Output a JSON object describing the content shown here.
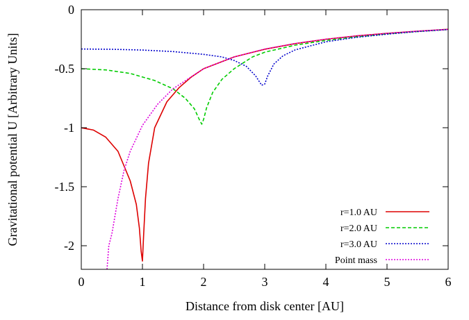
{
  "chart_data": {
    "type": "line",
    "xlabel": "Distance from disk center [AU]",
    "ylabel": "Gravitational potential U [Arbitrary Units]",
    "xlim": [
      0,
      6
    ],
    "ylim": [
      -2.2,
      0
    ],
    "x_ticks": [
      0,
      1,
      2,
      3,
      4,
      5,
      6
    ],
    "y_ticks": [
      0,
      -0.5,
      -1,
      -1.5,
      -2
    ],
    "x_tick_labels": [
      "0",
      "1",
      "2",
      "3",
      "4",
      "5",
      "6"
    ],
    "y_tick_labels": [
      "0",
      "-0.5",
      "-1",
      "-1.5",
      "-2"
    ],
    "grid": false,
    "legend_position": "bottom-right",
    "series": [
      {
        "name": "r=1.0 AU",
        "color": "#dd0000",
        "dash": "solid",
        "x": [
          0,
          0.2,
          0.4,
          0.6,
          0.8,
          0.9,
          0.95,
          0.98,
          1.0,
          1.02,
          1.05,
          1.1,
          1.2,
          1.4,
          1.6,
          1.8,
          2.0,
          2.5,
          3.0,
          3.5,
          4.0,
          4.5,
          5.0,
          5.5,
          6.0
        ],
        "y": [
          -1.0,
          -1.02,
          -1.08,
          -1.2,
          -1.45,
          -1.65,
          -1.85,
          -2.05,
          -2.13,
          -1.9,
          -1.6,
          -1.3,
          -1.0,
          -0.78,
          -0.66,
          -0.57,
          -0.5,
          -0.4,
          -0.335,
          -0.287,
          -0.25,
          -0.222,
          -0.2,
          -0.182,
          -0.166
        ]
      },
      {
        "name": "r=2.0 AU",
        "color": "#00cc00",
        "dash": "dashed",
        "x": [
          0,
          0.4,
          0.8,
          1.2,
          1.5,
          1.7,
          1.85,
          1.93,
          1.97,
          2.0,
          2.05,
          2.15,
          2.3,
          2.5,
          2.8,
          3.0,
          3.5,
          4.0,
          4.5,
          5.0,
          5.5,
          6.0
        ],
        "y": [
          -0.5,
          -0.51,
          -0.54,
          -0.6,
          -0.67,
          -0.75,
          -0.84,
          -0.93,
          -0.97,
          -0.93,
          -0.83,
          -0.7,
          -0.59,
          -0.5,
          -0.4,
          -0.36,
          -0.3,
          -0.26,
          -0.23,
          -0.205,
          -0.185,
          -0.168
        ]
      },
      {
        "name": "r=3.0 AU",
        "color": "#0000cc",
        "dash": "dotted",
        "x": [
          0,
          0.5,
          1.0,
          1.5,
          2.0,
          2.3,
          2.5,
          2.7,
          2.85,
          2.95,
          3.0,
          3.05,
          3.15,
          3.3,
          3.5,
          4.0,
          4.5,
          5.0,
          5.5,
          6.0
        ],
        "y": [
          -0.333,
          -0.335,
          -0.342,
          -0.355,
          -0.378,
          -0.4,
          -0.43,
          -0.48,
          -0.56,
          -0.64,
          -0.63,
          -0.56,
          -0.46,
          -0.39,
          -0.34,
          -0.272,
          -0.234,
          -0.207,
          -0.185,
          -0.168
        ]
      },
      {
        "name": "Point mass",
        "color": "#dd00dd",
        "dash": "dotted",
        "x": [
          0.42,
          0.45,
          0.5,
          0.6,
          0.7,
          0.8,
          1.0,
          1.25,
          1.5,
          2.0,
          2.5,
          3.0,
          3.5,
          4.0,
          4.5,
          5.0,
          5.5,
          6.0
        ],
        "y": [
          -2.2,
          -2.0,
          -1.9,
          -1.6,
          -1.36,
          -1.2,
          -0.98,
          -0.8,
          -0.67,
          -0.5,
          -0.4,
          -0.333,
          -0.286,
          -0.25,
          -0.222,
          -0.2,
          -0.182,
          -0.167
        ]
      }
    ]
  }
}
